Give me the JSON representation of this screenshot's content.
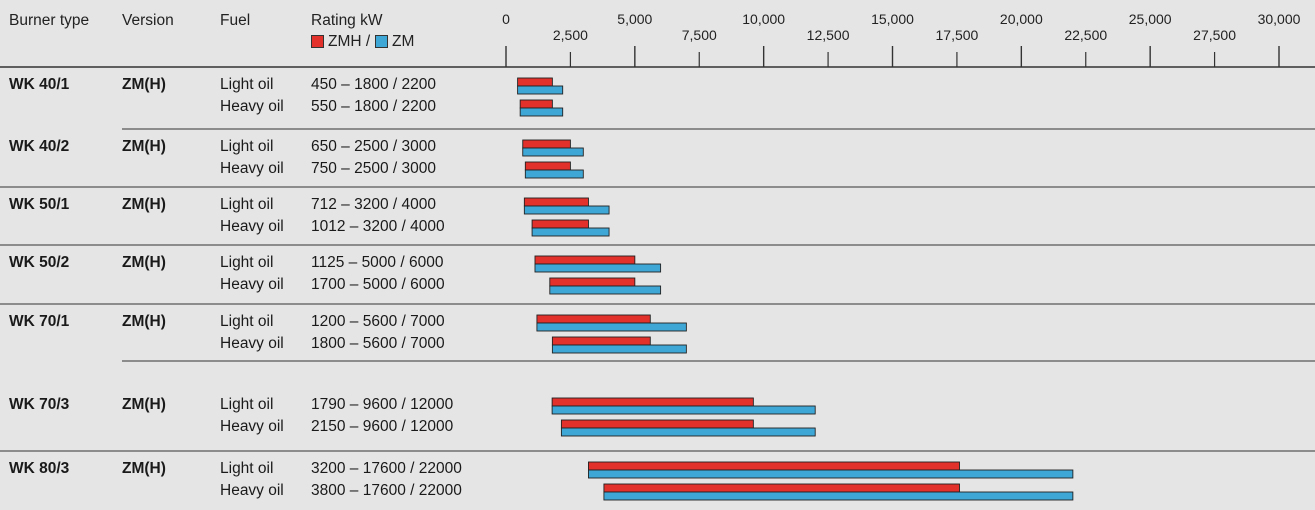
{
  "header": {
    "burner_type": "Burner type",
    "version": "Version",
    "fuel": "Fuel",
    "rating": "Rating kW",
    "legend_zmh": "ZMH /",
    "legend_zm": "ZM"
  },
  "colors": {
    "zmh": "#e2302b",
    "zm": "#3fa7d6",
    "bg": "#e5e5e5",
    "line": "#333333"
  },
  "chart_data": {
    "type": "bar",
    "orientation": "horizontal",
    "xlim": [
      0,
      30000
    ],
    "major_ticks": [
      "0",
      "5,000",
      "10,000",
      "15,000",
      "20,000",
      "25,000",
      "30,000"
    ],
    "minor_ticks": [
      "2,500",
      "7,500",
      "12,500",
      "17,500",
      "22,500",
      "27,500"
    ],
    "legend": [
      {
        "name": "ZMH",
        "color": "#e2302b"
      },
      {
        "name": "ZM",
        "color": "#3fa7d6"
      }
    ],
    "groups": [
      {
        "burner": "WK 40/1",
        "version": "ZM(H)",
        "rows": [
          {
            "fuel": "Light oil",
            "rating": "450 – 1800 / 2200",
            "min": 450,
            "zmh_max": 1800,
            "zm_max": 2200
          },
          {
            "fuel": "Heavy oil",
            "rating": "550 – 1800 / 2200",
            "min": 550,
            "zmh_max": 1800,
            "zm_max": 2200
          }
        ]
      },
      {
        "burner": "WK 40/2",
        "version": "ZM(H)",
        "rows": [
          {
            "fuel": "Light oil",
            "rating": "650 – 2500 / 3000",
            "min": 650,
            "zmh_max": 2500,
            "zm_max": 3000
          },
          {
            "fuel": "Heavy oil",
            "rating": "750 – 2500 / 3000",
            "min": 750,
            "zmh_max": 2500,
            "zm_max": 3000
          }
        ]
      },
      {
        "burner": "WK 50/1",
        "version": "ZM(H)",
        "rows": [
          {
            "fuel": "Light oil",
            "rating": "712 – 3200 / 4000",
            "min": 712,
            "zmh_max": 3200,
            "zm_max": 4000
          },
          {
            "fuel": "Heavy oil",
            "rating": "1012 – 3200 / 4000",
            "min": 1012,
            "zmh_max": 3200,
            "zm_max": 4000
          }
        ]
      },
      {
        "burner": "WK 50/2",
        "version": "ZM(H)",
        "rows": [
          {
            "fuel": "Light oil",
            "rating": "1125 – 5000 / 6000",
            "min": 1125,
            "zmh_max": 5000,
            "zm_max": 6000
          },
          {
            "fuel": "Heavy oil",
            "rating": "1700 – 5000 / 6000",
            "min": 1700,
            "zmh_max": 5000,
            "zm_max": 6000
          }
        ]
      },
      {
        "burner": "WK 70/1",
        "version": "ZM(H)",
        "rows": [
          {
            "fuel": "Light oil",
            "rating": "1200 – 5600 / 7000",
            "min": 1200,
            "zmh_max": 5600,
            "zm_max": 7000
          },
          {
            "fuel": "Heavy oil",
            "rating": "1800 – 5600 / 7000",
            "min": 1800,
            "zmh_max": 5600,
            "zm_max": 7000
          }
        ]
      },
      {
        "burner": "WK 70/3",
        "version": "ZM(H)",
        "rows": [
          {
            "fuel": "Light oil",
            "rating": "1790 – 9600 / 12000",
            "min": 1790,
            "zmh_max": 9600,
            "zm_max": 12000
          },
          {
            "fuel": "Heavy oil",
            "rating": "2150 – 9600 / 12000",
            "min": 2150,
            "zmh_max": 9600,
            "zm_max": 12000
          }
        ]
      },
      {
        "burner": "WK 80/3",
        "version": "ZM(H)",
        "rows": [
          {
            "fuel": "Light oil",
            "rating": "3200 – 17600 / 22000",
            "min": 3200,
            "zmh_max": 17600,
            "zm_max": 22000
          },
          {
            "fuel": "Heavy oil",
            "rating": "3800 – 17600 / 22000",
            "min": 3800,
            "zmh_max": 17600,
            "zm_max": 22000
          }
        ]
      }
    ]
  }
}
